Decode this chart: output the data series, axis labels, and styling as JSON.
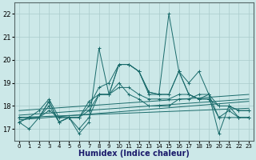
{
  "title": "",
  "xlabel": "Humidex (Indice chaleur)",
  "bg_color": "#cce8e8",
  "grid_color": "#aacccc",
  "line_color": "#1a6b6b",
  "xlim": [
    -0.5,
    23.5
  ],
  "ylim": [
    16.5,
    22.5
  ],
  "yticks": [
    17,
    18,
    19,
    20,
    21,
    22
  ],
  "xticks": [
    0,
    1,
    2,
    3,
    4,
    5,
    6,
    7,
    8,
    9,
    10,
    11,
    12,
    13,
    14,
    15,
    16,
    17,
    18,
    19,
    20,
    21,
    22,
    23
  ],
  "series": [
    [
      17.3,
      17.0,
      17.5,
      18.2,
      17.3,
      17.5,
      16.8,
      17.3,
      20.5,
      18.5,
      19.8,
      19.8,
      19.5,
      18.6,
      18.5,
      22.0,
      19.5,
      19.0,
      19.5,
      18.5,
      16.8,
      18.0,
      17.5,
      17.5
    ],
    [
      17.3,
      17.5,
      17.5,
      18.2,
      17.3,
      17.5,
      17.5,
      18.2,
      18.5,
      18.5,
      19.8,
      19.8,
      19.5,
      18.6,
      18.5,
      18.5,
      19.5,
      18.5,
      18.3,
      18.5,
      17.5,
      17.8,
      17.5,
      17.5
    ],
    [
      17.5,
      17.5,
      17.5,
      17.8,
      17.5,
      17.5,
      17.5,
      17.8,
      18.5,
      18.5,
      18.8,
      18.8,
      18.5,
      18.3,
      18.3,
      18.3,
      18.5,
      18.5,
      18.3,
      18.3,
      18.0,
      18.0,
      17.8,
      17.8
    ],
    [
      17.3,
      17.5,
      17.5,
      18.0,
      17.3,
      17.5,
      17.5,
      18.0,
      18.8,
      19.0,
      19.8,
      19.8,
      19.5,
      18.5,
      18.5,
      18.5,
      19.5,
      18.5,
      18.3,
      18.3,
      17.5,
      17.5,
      17.5,
      17.5
    ],
    [
      17.5,
      17.5,
      17.8,
      18.3,
      17.5,
      17.5,
      17.0,
      17.5,
      18.5,
      18.5,
      19.0,
      18.5,
      18.3,
      18.0,
      18.0,
      18.0,
      18.3,
      18.3,
      18.5,
      18.5,
      18.0,
      18.0,
      17.8,
      17.8
    ]
  ],
  "regression_lines": [
    {
      "x0": 0,
      "y0": 17.4,
      "x1": 23,
      "y1": 18.2
    },
    {
      "x0": 0,
      "y0": 17.5,
      "x1": 23,
      "y1": 17.9
    },
    {
      "x0": 0,
      "y0": 17.6,
      "x1": 23,
      "y1": 18.3
    },
    {
      "x0": 0,
      "y0": 17.8,
      "x1": 23,
      "y1": 18.5
    }
  ]
}
